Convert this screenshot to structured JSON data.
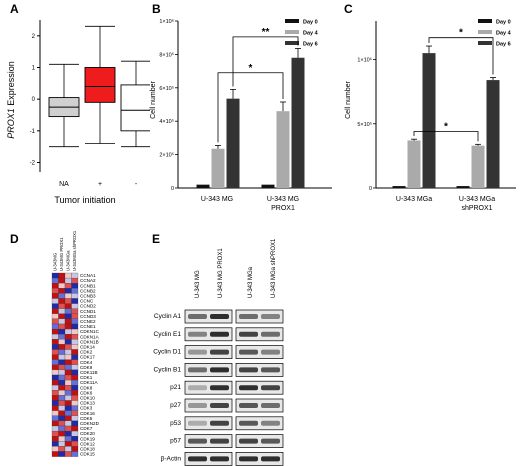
{
  "panels": {
    "A": "A",
    "B": "B",
    "C": "C",
    "D": "D",
    "E": "E"
  },
  "panelA": {
    "ylabel_italic": "PROX1",
    "ylabel_rest": " Expression",
    "xlabel": "Tumor initiation",
    "yticks": [
      "2",
      "1",
      "0",
      "-1",
      "-2"
    ],
    "categories": [
      "NA",
      "+",
      "-"
    ]
  },
  "panelB": {
    "ylabel": "Cell number",
    "yticks": [
      "0",
      "2×10⁵",
      "4×10⁵",
      "6×10⁵",
      "8×10⁵",
      "1×10⁶"
    ],
    "xcats": [
      "U-343 MG",
      "U-343 MG\nPROX1"
    ],
    "xcat1": "U-343 MG",
    "xcat2a": "U-343 MG",
    "xcat2b": "PROX1",
    "legend": [
      "Day 0",
      "Day 4",
      "Day 6"
    ],
    "sig": [
      "*",
      "**"
    ]
  },
  "panelC": {
    "ylabel": "Cell number",
    "yticks": [
      "0",
      "5×10⁵",
      "1×10⁶"
    ],
    "xcat1": "U-343 MGa",
    "xcat2a": "U-343 MGa",
    "xcat2b": "shPROX1",
    "legend": [
      "Day 0",
      "Day 4",
      "Day 6"
    ],
    "sig": [
      "*",
      "*"
    ]
  },
  "panelD": {
    "columns": [
      "U-343MG",
      "U-343MG PROX1",
      "U-343MGa",
      "U-343MGa shPROX1"
    ],
    "genes": [
      "CCNA1",
      "CCNA2",
      "CCNB1",
      "CCNB2",
      "CCNB3",
      "CCNC",
      "CCND2",
      "CCND1",
      "CCND3",
      "CCNE2",
      "CCNE1",
      "CDKN1C",
      "CDKN1A",
      "CDKN1B",
      "CDK14",
      "CDK2",
      "CDK17",
      "CDK4",
      "CDK9",
      "CDK11B",
      "CDK1",
      "CDK11A",
      "CDK8",
      "CDK6",
      "CDK10",
      "CDK13",
      "CDK3",
      "CDK16",
      "CDK5",
      "CDKN2D",
      "CDK7",
      "CDK20",
      "CDK19",
      "CDK12",
      "CDK18",
      "CDK15"
    ]
  },
  "panelE": {
    "columns": [
      "U-343 MG",
      "U-343 MG PROX1",
      "U-343 MGa",
      "U-343 MGa shPROX1"
    ],
    "rows": [
      "Cyclin A1",
      "Cyclin E1",
      "Cyclin D1",
      "Cyclin B1",
      "p21",
      "p27",
      "p53",
      "p57",
      "β-Actin"
    ]
  },
  "chart_data": [
    {
      "type": "box",
      "panel": "A",
      "categories": [
        "NA",
        "+",
        "-"
      ],
      "ylabel": "PROX1 Expression",
      "xlabel": "Tumor initiation",
      "ylim": [
        -2.3,
        2.5
      ],
      "boxes": [
        {
          "name": "NA",
          "whisker_low": -1.5,
          "q1": -0.55,
          "median": -0.25,
          "q3": 0.05,
          "whisker_high": 1.1,
          "color": "#d0d0d0"
        },
        {
          "name": "+",
          "whisker_low": -1.4,
          "q1": -0.1,
          "median": 0.4,
          "q3": 1.0,
          "whisker_high": 2.3,
          "color": "#ee1c1c"
        },
        {
          "name": "-",
          "whisker_low": -1.5,
          "q1": -1.0,
          "median": -0.35,
          "q3": 0.45,
          "whisker_high": 1.2,
          "color": "#ffffff"
        }
      ]
    },
    {
      "type": "bar",
      "panel": "B",
      "categories": [
        "U-343 MG",
        "U-343 MG PROX1"
      ],
      "ylabel": "Cell number",
      "ylim": [
        0,
        1000000
      ],
      "series": [
        {
          "name": "Day 0",
          "values": [
            20000,
            20000
          ],
          "errors": [
            0,
            0
          ],
          "color": "#111111"
        },
        {
          "name": "Day 4",
          "values": [
            235000,
            460000
          ],
          "errors": [
            20000,
            55000
          ],
          "color": "#aaaaaa"
        },
        {
          "name": "Day 6",
          "values": [
            535000,
            780000
          ],
          "errors": [
            55000,
            55000
          ],
          "color": "#333333"
        }
      ]
    },
    {
      "type": "bar",
      "panel": "C",
      "categories": [
        "U-343 MGa",
        "U-343 MGa shPROX1"
      ],
      "ylabel": "Cell number",
      "ylim": [
        0,
        1300000
      ],
      "series": [
        {
          "name": "Day 0",
          "values": [
            15000,
            15000
          ],
          "errors": [
            0,
            0
          ],
          "color": "#111111"
        },
        {
          "name": "Day 4",
          "values": [
            370000,
            330000
          ],
          "errors": [
            10000,
            10000
          ],
          "color": "#aaaaaa"
        },
        {
          "name": "Day 6",
          "values": [
            1050000,
            840000
          ],
          "errors": [
            55000,
            20000
          ],
          "color": "#333333"
        }
      ]
    }
  ]
}
